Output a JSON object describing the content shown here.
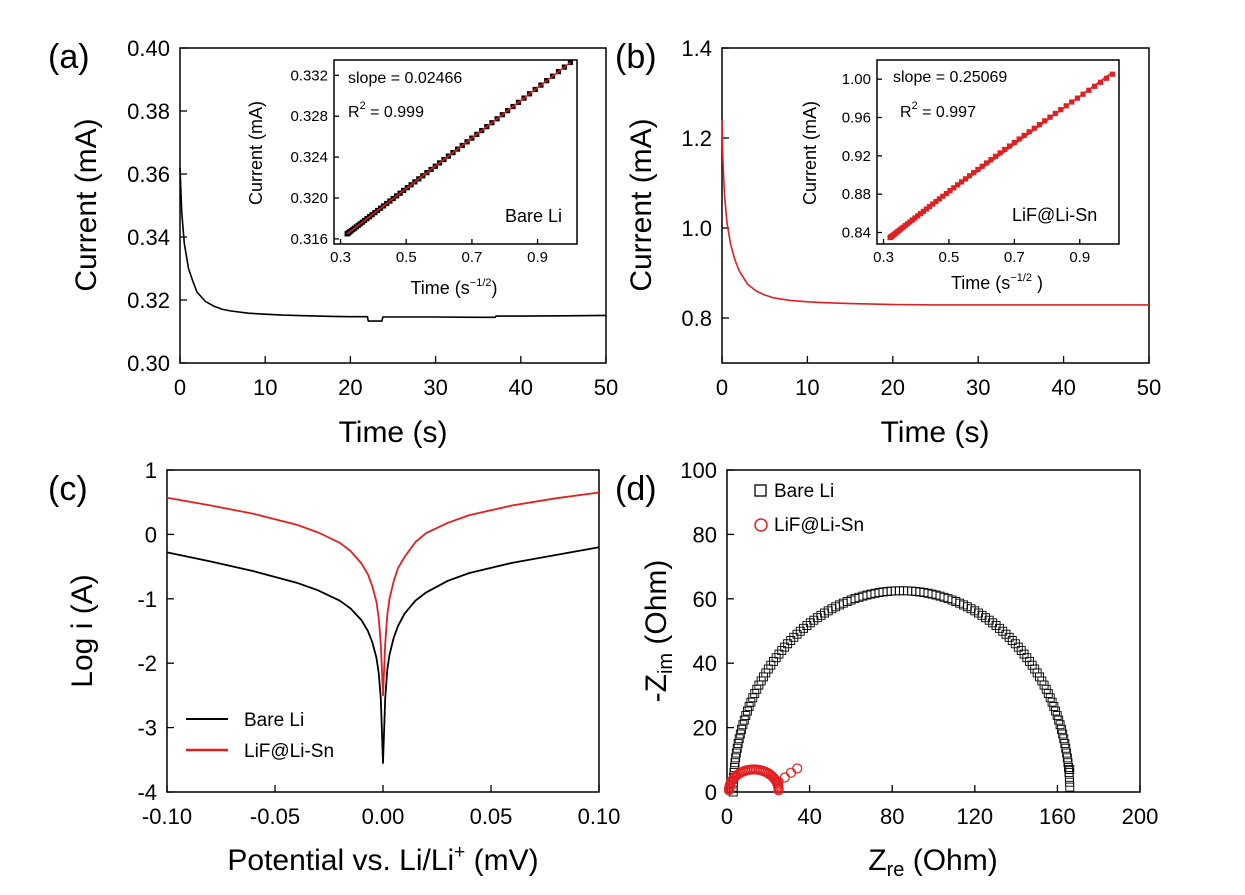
{
  "chart_data": [
    {
      "id": "a",
      "panel_label": "(a)",
      "type": "line",
      "xlabel": "Time (s)",
      "ylabel": "Current (mA)",
      "xlim": [
        0,
        50
      ],
      "ylim": [
        0.3,
        0.4
      ],
      "xticks": [
        "0",
        "10",
        "20",
        "30",
        "40",
        "50"
      ],
      "yticks": [
        "0.30",
        "0.32",
        "0.34",
        "0.36",
        "0.38",
        "0.40"
      ],
      "series": [
        {
          "name": "Bare Li",
          "color": "#000000",
          "x": [
            0,
            0.2,
            0.5,
            1,
            1.5,
            2,
            3,
            4,
            5,
            6,
            8,
            10,
            12,
            15,
            18,
            20,
            22,
            22.1,
            23.7,
            23.8,
            26,
            30,
            35,
            37,
            37.1,
            40,
            45,
            50
          ],
          "y": [
            0.362,
            0.348,
            0.338,
            0.33,
            0.326,
            0.3225,
            0.3195,
            0.318,
            0.317,
            0.3165,
            0.3158,
            0.3155,
            0.3152,
            0.315,
            0.3148,
            0.3147,
            0.3147,
            0.3133,
            0.3133,
            0.3146,
            0.3146,
            0.3146,
            0.3145,
            0.3145,
            0.3149,
            0.3149,
            0.315,
            0.3151
          ]
        }
      ],
      "inset": {
        "type": "scatter",
        "xlabel": "Time (s",
        "xlabel_sup": "−1/2",
        "xlabel_end": ")",
        "ylabel": "Current (mA)",
        "xlim": [
          0.28,
          1.02
        ],
        "ylim": [
          0.3155,
          0.3335
        ],
        "xticks": [
          0.3,
          0.5,
          0.7,
          0.9
        ],
        "xtick_labels": [
          "0.3",
          "0.5",
          "0.7",
          "0.9"
        ],
        "yticks": [
          0.316,
          0.32,
          0.324,
          0.328,
          0.332
        ],
        "ytick_labels": [
          "0.316",
          "0.320",
          "0.324",
          "0.328",
          "0.332"
        ],
        "slope_text": "slope = 0.02466",
        "r2_text": "R",
        "r2_sup": "2",
        "r2_value": " = 0.999",
        "sample_label": "Bare Li",
        "fit": {
          "slope": 0.02466,
          "intercept": 0.3086,
          "x_range": [
            0.32,
            1.0
          ],
          "color": "#e02020"
        },
        "points": {
          "x_start": 0.32,
          "x_end": 1.0,
          "count": 60,
          "marker": "square",
          "color": "#000000"
        }
      }
    },
    {
      "id": "b",
      "panel_label": "(b)",
      "type": "line",
      "xlabel": "Time (s)",
      "ylabel": "Current (mA)",
      "xlim": [
        0,
        50
      ],
      "ylim": [
        0.7,
        1.4
      ],
      "xticks": [
        "0",
        "10",
        "20",
        "30",
        "40",
        "50"
      ],
      "yticks": [
        "0.8",
        "1.0",
        "1.2",
        "1.4"
      ],
      "ytick_values": [
        0.8,
        1.0,
        1.2,
        1.4
      ],
      "series": [
        {
          "name": "LiF@Li-Sn",
          "color": "#e02020",
          "x": [
            0,
            0.1,
            0.3,
            0.6,
            1,
            1.5,
            2,
            3,
            4,
            5,
            6,
            8,
            10,
            12,
            15,
            20,
            25,
            30,
            40,
            50
          ],
          "y": [
            1.24,
            1.15,
            1.07,
            1.01,
            0.965,
            0.93,
            0.905,
            0.875,
            0.86,
            0.851,
            0.845,
            0.839,
            0.836,
            0.834,
            0.832,
            0.83,
            0.829,
            0.829,
            0.829,
            0.829
          ]
        }
      ],
      "inset": {
        "type": "scatter",
        "xlabel": "Time (s",
        "xlabel_sup": "−1/2",
        "xlabel_end": " )",
        "ylabel": "Current (mA)",
        "xlim": [
          0.28,
          1.02
        ],
        "ylim": [
          0.828,
          1.02
        ],
        "xticks": [
          0.3,
          0.5,
          0.7,
          0.9
        ],
        "xtick_labels": [
          "0.3",
          "0.5",
          "0.7",
          "0.9"
        ],
        "yticks": [
          0.84,
          0.88,
          0.92,
          0.96,
          1.0
        ],
        "ytick_labels": [
          "0.84",
          "0.88",
          "0.92",
          "0.96",
          "1.00"
        ],
        "slope_text": "slope = 0.25069",
        "r2_text": "R",
        "r2_sup": "2",
        "r2_value": " = 0.997",
        "sample_label": "LiF@Li-Sn",
        "fit": {
          "slope": 0.25069,
          "intercept": 0.7565,
          "x_range": [
            0.32,
            1.0
          ],
          "color": "#e02020"
        },
        "points": {
          "x_start": 0.32,
          "x_end": 1.0,
          "count": 60,
          "marker": "square",
          "color": "#e02020"
        }
      }
    },
    {
      "id": "c",
      "panel_label": "(c)",
      "type": "line",
      "xlabel": "Potential vs. Li/Li",
      "xlabel_sup": "+",
      "xlabel_end": " (mV)",
      "ylabel": "Log  i (A)",
      "xlim": [
        -0.1,
        0.1
      ],
      "ylim": [
        -4,
        1
      ],
      "xticks": [
        "-0.10",
        "-0.05",
        "0.00",
        "0.05",
        "0.10"
      ],
      "xtick_values": [
        -0.1,
        -0.05,
        0,
        0.05,
        0.1
      ],
      "yticks": [
        "-4",
        "-3",
        "-2",
        "-1",
        "0",
        "1"
      ],
      "ytick_values": [
        -4,
        -3,
        -2,
        -1,
        0,
        1
      ],
      "legend_position": "bottom-left",
      "series": [
        {
          "name": "Bare Li",
          "color": "#000000",
          "x": [
            -0.1,
            -0.08,
            -0.06,
            -0.04,
            -0.03,
            -0.02,
            -0.015,
            -0.01,
            -0.007,
            -0.005,
            -0.003,
            -0.002,
            -0.001,
            0.0,
            0.001,
            0.002,
            0.003,
            0.005,
            0.007,
            0.01,
            0.015,
            0.02,
            0.03,
            0.04,
            0.06,
            0.08,
            0.1
          ],
          "y": [
            -0.28,
            -0.42,
            -0.57,
            -0.75,
            -0.87,
            -1.03,
            -1.15,
            -1.33,
            -1.5,
            -1.67,
            -1.92,
            -2.15,
            -2.55,
            -3.55,
            -2.55,
            -2.1,
            -1.87,
            -1.6,
            -1.42,
            -1.23,
            -1.03,
            -0.9,
            -0.72,
            -0.6,
            -0.44,
            -0.32,
            -0.2
          ]
        },
        {
          "name": "LiF@Li-Sn",
          "color": "#e02020",
          "x": [
            -0.1,
            -0.08,
            -0.06,
            -0.04,
            -0.03,
            -0.02,
            -0.015,
            -0.01,
            -0.007,
            -0.005,
            -0.003,
            -0.002,
            -0.001,
            0.0,
            0.001,
            0.002,
            0.003,
            0.005,
            0.007,
            0.01,
            0.015,
            0.02,
            0.03,
            0.04,
            0.06,
            0.08,
            0.1
          ],
          "y": [
            0.57,
            0.45,
            0.32,
            0.15,
            0.03,
            -0.13,
            -0.26,
            -0.45,
            -0.62,
            -0.8,
            -1.05,
            -1.3,
            -1.7,
            -2.5,
            -1.7,
            -1.25,
            -1.0,
            -0.72,
            -0.52,
            -0.35,
            -0.12,
            0.02,
            0.18,
            0.3,
            0.45,
            0.56,
            0.65
          ]
        }
      ]
    },
    {
      "id": "d",
      "panel_label": "(d)",
      "type": "scatter",
      "xlabel": "Z",
      "xlabel_sub": "re",
      "xlabel_end": " (Ohm)",
      "ylabel": "-Z",
      "ylabel_sub": "im",
      "ylabel_end": " (Ohm)",
      "xlim": [
        0,
        200
      ],
      "ylim": [
        0,
        100
      ],
      "xticks": [
        "0",
        "40",
        "80",
        "120",
        "160",
        "200"
      ],
      "xtick_values": [
        0,
        40,
        80,
        120,
        160,
        200
      ],
      "yticks": [
        "0",
        "20",
        "40",
        "60",
        "80",
        "100"
      ],
      "ytick_values": [
        0,
        20,
        40,
        60,
        80,
        100
      ],
      "legend_position": "top-left",
      "series": [
        {
          "name": "Bare Li",
          "color": "#000000",
          "marker": "square",
          "arc": {
            "start": 3,
            "end": 166,
            "peak": 62.5,
            "tail_end_y": 7,
            "count": 130
          }
        },
        {
          "name": "LiF@Li-Sn",
          "color": "#e02020",
          "marker": "circle",
          "arc": {
            "start": 1,
            "end": 25,
            "peak": 6.5,
            "count": 45,
            "tail_x": [
              25,
              28,
              31,
              34
            ],
            "tail_y": [
              3.2,
              4.5,
              6.0,
              7.3
            ]
          }
        }
      ]
    }
  ]
}
